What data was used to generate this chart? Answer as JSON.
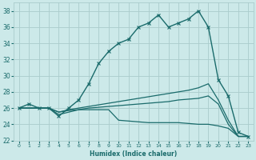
{
  "title": "",
  "xlabel": "Humidex (Indice chaleur)",
  "background_color": "#cce9e9",
  "grid_color": "#aacccc",
  "line_color": "#1a6b6b",
  "xlim": [
    -0.5,
    23.5
  ],
  "ylim": [
    22,
    39
  ],
  "xticks": [
    0,
    1,
    2,
    3,
    4,
    5,
    6,
    7,
    8,
    9,
    10,
    11,
    12,
    13,
    14,
    15,
    16,
    17,
    18,
    19,
    20,
    21,
    22,
    23
  ],
  "yticks": [
    22,
    24,
    26,
    28,
    30,
    32,
    34,
    36,
    38
  ],
  "series": [
    {
      "x": [
        0,
        1,
        2,
        3,
        4,
        5,
        6,
        7,
        8,
        9,
        10,
        11,
        12,
        13,
        14,
        15,
        16,
        17,
        18,
        19,
        20,
        21,
        22,
        23
      ],
      "y": [
        26.0,
        26.5,
        26.0,
        26.0,
        25.0,
        26.0,
        27.0,
        29.0,
        31.5,
        33.0,
        34.0,
        34.5,
        36.0,
        36.5,
        37.5,
        36.0,
        36.5,
        37.0,
        38.0,
        36.0,
        29.5,
        27.5,
        23.0,
        22.5
      ],
      "marker": "x",
      "linewidth": 1.0
    },
    {
      "x": [
        0,
        1,
        2,
        3,
        4,
        5,
        6,
        7,
        8,
        9,
        10,
        11,
        12,
        13,
        14,
        15,
        16,
        17,
        18,
        19,
        20,
        21,
        22,
        23
      ],
      "y": [
        26.0,
        26.0,
        26.0,
        26.0,
        25.5,
        25.8,
        26.0,
        26.2,
        26.4,
        26.6,
        26.8,
        27.0,
        27.2,
        27.4,
        27.6,
        27.8,
        28.0,
        28.2,
        28.5,
        29.0,
        27.0,
        24.5,
        22.5,
        22.5
      ],
      "marker": null,
      "linewidth": 0.9
    },
    {
      "x": [
        0,
        1,
        2,
        3,
        4,
        5,
        6,
        7,
        8,
        9,
        10,
        11,
        12,
        13,
        14,
        15,
        16,
        17,
        18,
        19,
        20,
        21,
        22,
        23
      ],
      "y": [
        26.0,
        26.0,
        26.0,
        26.0,
        25.5,
        25.7,
        25.8,
        26.0,
        26.1,
        26.2,
        26.3,
        26.4,
        26.5,
        26.6,
        26.7,
        26.8,
        27.0,
        27.1,
        27.2,
        27.5,
        26.5,
        24.0,
        22.5,
        22.5
      ],
      "marker": null,
      "linewidth": 0.9
    },
    {
      "x": [
        0,
        1,
        2,
        3,
        4,
        5,
        6,
        7,
        8,
        9,
        10,
        11,
        12,
        13,
        14,
        15,
        16,
        17,
        18,
        19,
        20,
        21,
        22,
        23
      ],
      "y": [
        26.0,
        26.0,
        26.0,
        26.0,
        25.2,
        25.5,
        25.8,
        25.8,
        25.8,
        25.8,
        24.5,
        24.4,
        24.3,
        24.2,
        24.2,
        24.2,
        24.2,
        24.1,
        24.0,
        24.0,
        23.8,
        23.5,
        22.5,
        22.5
      ],
      "marker": null,
      "linewidth": 0.9
    }
  ]
}
